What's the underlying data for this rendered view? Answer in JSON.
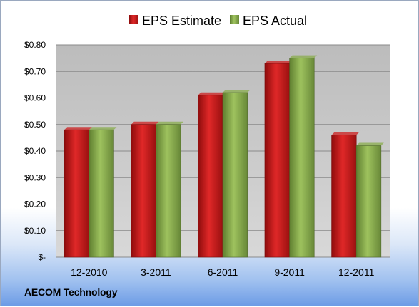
{
  "chart_data": {
    "type": "bar",
    "categories": [
      "12-2010",
      "3-2011",
      "6-2011",
      "9-2011",
      "12-2011"
    ],
    "series": [
      {
        "name": "EPS Estimate",
        "values": [
          0.48,
          0.5,
          0.61,
          0.73,
          0.46
        ],
        "color": "#cc1f1f"
      },
      {
        "name": "EPS Actual",
        "values": [
          0.48,
          0.5,
          0.62,
          0.75,
          0.42
        ],
        "color": "#88ac4c"
      }
    ],
    "ylim": [
      0,
      0.8
    ],
    "yticks": [
      0,
      0.1,
      0.2,
      0.3,
      0.4,
      0.5,
      0.6,
      0.7,
      0.8
    ],
    "ytick_labels": [
      "$-",
      "$0.10",
      "$0.20",
      "$0.30",
      "$0.40",
      "$0.50",
      "$0.60",
      "$0.70",
      "$0.80"
    ],
    "grid": true,
    "legend_position": "top",
    "plot_background": "#c0c0c0",
    "title": "",
    "xlabel": "",
    "ylabel": ""
  },
  "footer": {
    "company": "AECOM Technology"
  }
}
